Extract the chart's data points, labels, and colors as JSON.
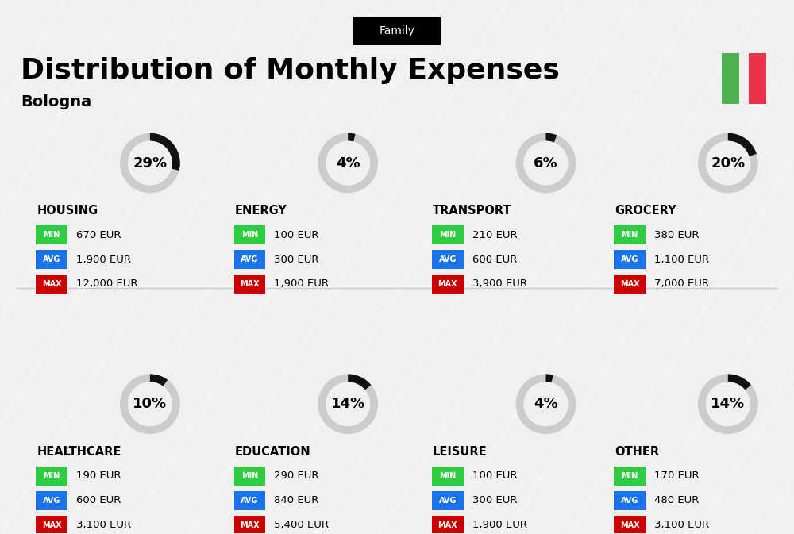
{
  "title": "Distribution of Monthly Expenses",
  "subtitle": "Bologna",
  "tag": "Family",
  "bg_color": "#f0f0f0",
  "categories": [
    {
      "name": "HOUSING",
      "pct": 29,
      "min_val": "670 EUR",
      "avg_val": "1,900 EUR",
      "max_val": "12,000 EUR",
      "row": 0,
      "col": 0
    },
    {
      "name": "ENERGY",
      "pct": 4,
      "min_val": "100 EUR",
      "avg_val": "300 EUR",
      "max_val": "1,900 EUR",
      "row": 0,
      "col": 1
    },
    {
      "name": "TRANSPORT",
      "pct": 6,
      "min_val": "210 EUR",
      "avg_val": "600 EUR",
      "max_val": "3,900 EUR",
      "row": 0,
      "col": 2
    },
    {
      "name": "GROCERY",
      "pct": 20,
      "min_val": "380 EUR",
      "avg_val": "1,100 EUR",
      "max_val": "7,000 EUR",
      "row": 0,
      "col": 3
    },
    {
      "name": "HEALTHCARE",
      "pct": 10,
      "min_val": "190 EUR",
      "avg_val": "600 EUR",
      "max_val": "3,100 EUR",
      "row": 1,
      "col": 0
    },
    {
      "name": "EDUCATION",
      "pct": 14,
      "min_val": "290 EUR",
      "avg_val": "840 EUR",
      "max_val": "5,400 EUR",
      "row": 1,
      "col": 1
    },
    {
      "name": "LEISURE",
      "pct": 4,
      "min_val": "100 EUR",
      "avg_val": "300 EUR",
      "max_val": "1,900 EUR",
      "row": 1,
      "col": 2
    },
    {
      "name": "OTHER",
      "pct": 14,
      "min_val": "170 EUR",
      "avg_val": "480 EUR",
      "max_val": "3,100 EUR",
      "row": 1,
      "col": 3
    }
  ],
  "min_color": "#2ecc40",
  "avg_color": "#1a73e8",
  "max_color": "#cc0000",
  "label_color": "#ffffff",
  "italy_green": "#4caf50",
  "italy_red": "#e8334a",
  "donut_color": "#111111",
  "donut_bg": "#cccccc"
}
